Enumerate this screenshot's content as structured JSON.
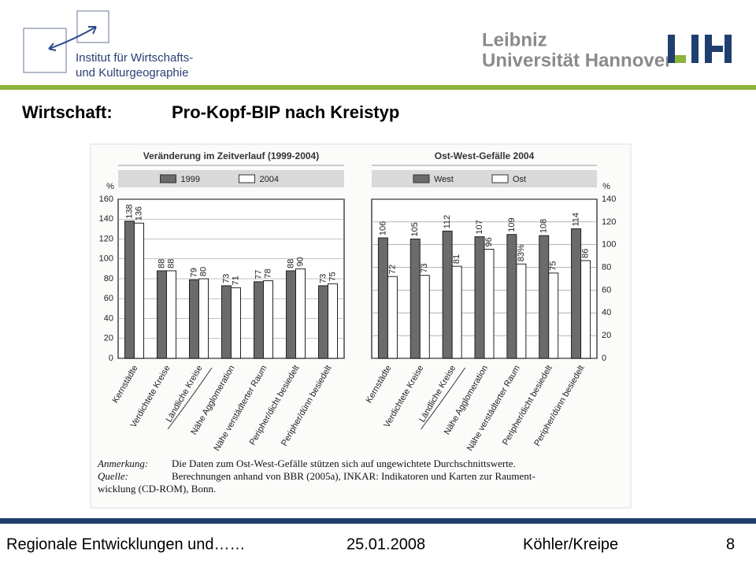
{
  "header": {
    "institute": [
      "Institut für Wirtschafts-",
      "und Kulturgeographie"
    ],
    "university": [
      "Leibniz",
      "Universität Hannover"
    ]
  },
  "slide_title": [
    "Wirtschaft:",
    "Pro-Kopf-BIP nach Kreistyp"
  ],
  "chart_data": [
    {
      "type": "bar",
      "title": "Veränderung im Zeitverlauf (1999-2004)",
      "ylabel": "%",
      "categories": [
        "Kernstädte",
        "Verdichtete Kreise",
        "Ländliche Kreise",
        "Nähe Agglomeration",
        "Nähe verstädterter Raum",
        "Peripher/dicht besiedelt",
        "Peripher/dünn besiedelt"
      ],
      "series": [
        {
          "name": "1999",
          "color": "#6b6b6b",
          "values": [
            138,
            88,
            79,
            73,
            77,
            88,
            73
          ]
        },
        {
          "name": "2004",
          "color": "#ffffff",
          "values": [
            136,
            88,
            80,
            71,
            78,
            90,
            75
          ]
        }
      ],
      "ylim": [
        0,
        160
      ],
      "yticks": [
        0,
        20,
        40,
        60,
        80,
        100,
        120,
        140,
        160
      ],
      "grid": true,
      "yaxis_side": "left"
    },
    {
      "type": "bar",
      "title": "Ost-West-Gefälle 2004",
      "ylabel": "%",
      "categories": [
        "Kernstädte",
        "Verdichtete Kreise",
        "Ländliche Kreise",
        "Nähe Agglomeration",
        "Nähe verstädterter Raum",
        "Peripher/dicht besiedelt",
        "Peripher/dünn besiedelt"
      ],
      "series": [
        {
          "name": "West",
          "color": "#6b6b6b",
          "values": [
            106,
            105,
            112,
            107,
            109,
            108,
            114
          ]
        },
        {
          "name": "Ost",
          "color": "#ffffff",
          "values": [
            72,
            73,
            81,
            96,
            83,
            75,
            86
          ],
          "value_labels": [
            "72",
            "73",
            "81",
            "96",
            "83%",
            "75",
            "86"
          ]
        }
      ],
      "ylim": [
        0,
        140
      ],
      "yticks": [
        0,
        20,
        40,
        60,
        80,
        100,
        120,
        140
      ],
      "grid": true,
      "yaxis_side": "right"
    }
  ],
  "note": {
    "label": "Anmerkung:",
    "text": "Die Daten zum Ost-West-Gefälle stützen sich auf ungewichtete Durchschnittswerte."
  },
  "source": {
    "label": "Quelle:",
    "lines": [
      "Berechnungen anhand von BBR (2005a), INKAR: Indikatoren und Karten zur Raument-",
      "wicklung (CD-ROM), Bonn."
    ]
  },
  "footer": {
    "title": "Regionale Entwicklungen und……",
    "date": "25.01.2008",
    "authors": "Köhler/Kreipe",
    "page": "8"
  }
}
